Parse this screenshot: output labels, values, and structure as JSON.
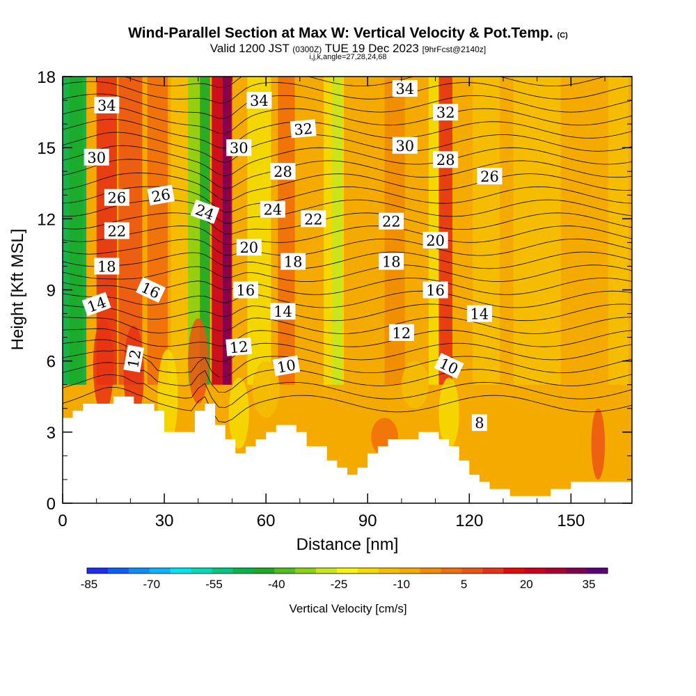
{
  "title": {
    "main": "Wind-Parallel Section at Max W: Vertical Velocity & Pot.Temp.",
    "main_unit": "(C)",
    "valid_prefix": "Valid 1200 JST",
    "valid_utc": "(0300Z)",
    "valid_date": "TUE 19 Dec 2023",
    "forecast": "[9hrFcst@2140z]",
    "indices": "i,j,k,angle=27,28,24,68"
  },
  "chart_data": {
    "type": "heatmap",
    "xlabel": "Distance [nm]",
    "ylabel": "Height [Kft MSL]",
    "xlim": [
      0,
      168
    ],
    "ylim": [
      0,
      18
    ],
    "x_ticks": [
      0,
      30,
      60,
      90,
      120,
      150
    ],
    "y_ticks": [
      0,
      3,
      6,
      9,
      12,
      15,
      18
    ],
    "colorbar": {
      "label": "Vertical Velocity [cm/s]",
      "tick_labels": [
        "-85",
        "-70",
        "-55",
        "-40",
        "-25",
        "-10",
        "5",
        "20",
        "35"
      ],
      "colors": [
        "#1e2ef0",
        "#0a5ff5",
        "#0890f8",
        "#0ab4fa",
        "#00e6f5",
        "#00dcb4",
        "#00c880",
        "#00b450",
        "#1eaa28",
        "#50be1e",
        "#8cd214",
        "#c8e61e",
        "#f5f50a",
        "#f5dc00",
        "#f5be00",
        "#f5aa00",
        "#f08c00",
        "#f06e0a",
        "#eb5514",
        "#e63214",
        "#e10a0a",
        "#c8001e",
        "#aa0032",
        "#820050",
        "#5a0078"
      ]
    },
    "series": [
      {
        "name": "Vertical Velocity [cm/s] (strong updraft / downdraft columns)",
        "x": [
          2,
          30,
          42,
          48,
          62,
          80,
          100,
          112,
          154,
          14
        ],
        "y": [
          14,
          16,
          15,
          15,
          13,
          15,
          14,
          16,
          2.5,
          6
        ],
        "values": [
          -40,
          20,
          -45,
          35,
          -20,
          -25,
          12,
          15,
          12,
          15
        ]
      },
      {
        "name": "Pot.Temp. contours (C)",
        "labels": [
          {
            "value": "34",
            "x": 13,
            "y": 16.8,
            "angle": 0
          },
          {
            "value": "34",
            "x": 58,
            "y": 17.0,
            "angle": 0
          },
          {
            "value": "34",
            "x": 101,
            "y": 17.5,
            "angle": 0
          },
          {
            "value": "32",
            "x": 71,
            "y": 15.8,
            "angle": -5
          },
          {
            "value": "32",
            "x": 113,
            "y": 16.5,
            "angle": 0
          },
          {
            "value": "30",
            "x": 10,
            "y": 14.6,
            "angle": 0
          },
          {
            "value": "30",
            "x": 52,
            "y": 15.0,
            "angle": 0
          },
          {
            "value": "30",
            "x": 101,
            "y": 15.1,
            "angle": 0
          },
          {
            "value": "28",
            "x": 65,
            "y": 14.0,
            "angle": 0
          },
          {
            "value": "28",
            "x": 113,
            "y": 14.5,
            "angle": 0
          },
          {
            "value": "26",
            "x": 16,
            "y": 12.9,
            "angle": 0
          },
          {
            "value": "26",
            "x": 29,
            "y": 13.0,
            "angle": -10
          },
          {
            "value": "26",
            "x": 126,
            "y": 13.8,
            "angle": 0
          },
          {
            "value": "24",
            "x": 42,
            "y": 12.3,
            "angle": 20
          },
          {
            "value": "24",
            "x": 62,
            "y": 12.4,
            "angle": 0
          },
          {
            "value": "22",
            "x": 16,
            "y": 11.5,
            "angle": 0
          },
          {
            "value": "22",
            "x": 74,
            "y": 12.0,
            "angle": 0
          },
          {
            "value": "22",
            "x": 97,
            "y": 11.9,
            "angle": 0
          },
          {
            "value": "20",
            "x": 55,
            "y": 10.8,
            "angle": 0
          },
          {
            "value": "20",
            "x": 110,
            "y": 11.1,
            "angle": 0
          },
          {
            "value": "18",
            "x": 13,
            "y": 10.0,
            "angle": 0
          },
          {
            "value": "18",
            "x": 68,
            "y": 10.2,
            "angle": 0
          },
          {
            "value": "18",
            "x": 97,
            "y": 10.2,
            "angle": 0
          },
          {
            "value": "16",
            "x": 26,
            "y": 9.0,
            "angle": 25
          },
          {
            "value": "16",
            "x": 54,
            "y": 9.0,
            "angle": 0
          },
          {
            "value": "16",
            "x": 110,
            "y": 9.0,
            "angle": 0
          },
          {
            "value": "14",
            "x": 10,
            "y": 8.4,
            "angle": -20
          },
          {
            "value": "14",
            "x": 65,
            "y": 8.1,
            "angle": 0
          },
          {
            "value": "14",
            "x": 123,
            "y": 8.0,
            "angle": 0
          },
          {
            "value": "12",
            "x": 21,
            "y": 6.1,
            "angle": -80
          },
          {
            "value": "12",
            "x": 52,
            "y": 6.6,
            "angle": -5
          },
          {
            "value": "12",
            "x": 100,
            "y": 7.2,
            "angle": 0
          },
          {
            "value": "10",
            "x": 66,
            "y": 5.8,
            "angle": -10
          },
          {
            "value": "10",
            "x": 114,
            "y": 5.8,
            "angle": 25
          },
          {
            "value": "8",
            "x": 123,
            "y": 3.4,
            "angle": 0
          }
        ]
      }
    ],
    "terrain_kft": {
      "x": [
        0,
        3,
        6,
        9,
        12,
        15,
        18,
        21,
        24,
        27,
        30,
        33,
        36,
        39,
        42,
        45,
        48,
        51,
        54,
        57,
        60,
        63,
        66,
        69,
        72,
        75,
        78,
        81,
        84,
        87,
        90,
        93,
        96,
        99,
        102,
        105,
        108,
        111,
        114,
        117,
        120,
        123,
        126,
        129,
        132,
        135,
        138,
        141,
        144,
        147,
        150,
        153,
        156,
        159,
        162,
        165,
        168
      ],
      "h": [
        3.6,
        3.9,
        4.2,
        4.2,
        4.2,
        4.5,
        4.5,
        4.2,
        4.2,
        3.9,
        3.0,
        3.0,
        3.0,
        3.9,
        4.2,
        3.3,
        2.7,
        2.1,
        2.4,
        2.7,
        3.0,
        3.3,
        3.3,
        3.0,
        2.4,
        2.4,
        1.8,
        1.5,
        1.2,
        1.5,
        2.1,
        2.4,
        2.7,
        2.7,
        2.7,
        3.0,
        3.0,
        2.7,
        2.4,
        1.8,
        1.2,
        0.9,
        0.6,
        0.6,
        0.3,
        0.3,
        0.3,
        0.3,
        0.6,
        0.6,
        0.9,
        0.9,
        0.9,
        0.9,
        0.9,
        0.9,
        0.9
      ]
    },
    "grid": false
  }
}
